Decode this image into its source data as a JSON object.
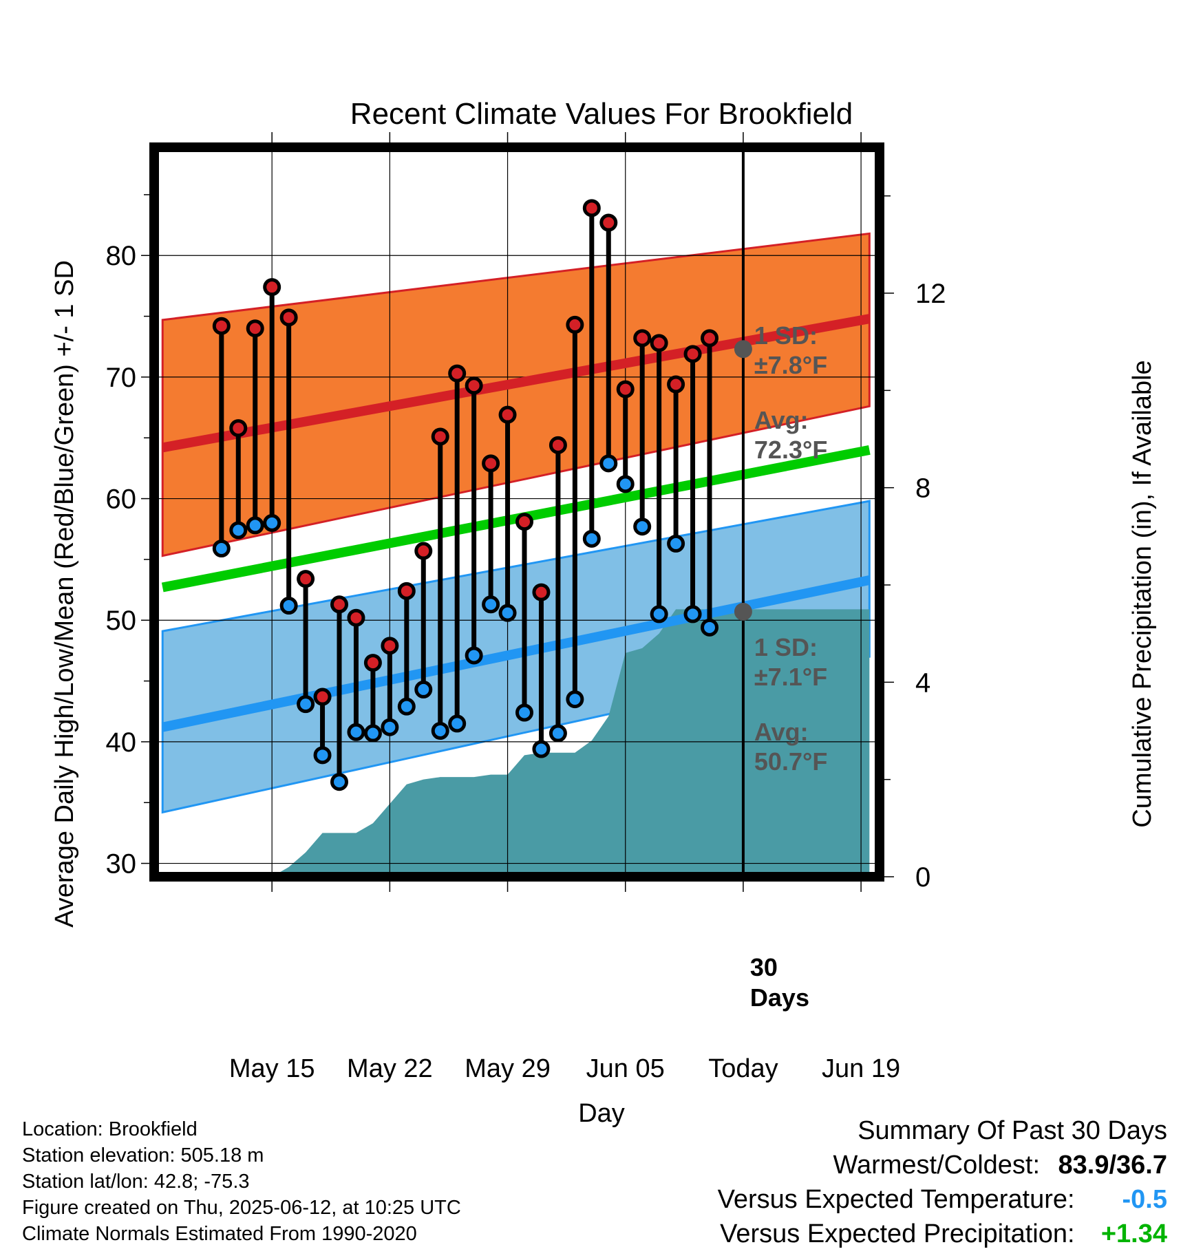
{
  "chart_data": {
    "type": "line",
    "title": "Recent Climate Values For Brookfield",
    "xlabel": "Day",
    "ylabel": "Average Daily High/Low/Mean (Red/Blue/Green) +/- 1 SD",
    "ylabel_right": "Cumulative Precipitation (in), If Available",
    "x_range": [
      -4.0,
      39.1
    ],
    "ylim": [
      28.9,
      88.9
    ],
    "y2lim": [
      0,
      15
    ],
    "x_ticks": [
      {
        "day": 3,
        "label": "May 15"
      },
      {
        "day": 10,
        "label": "May 22"
      },
      {
        "day": 17,
        "label": "May 29"
      },
      {
        "day": 24,
        "label": "Jun 05"
      },
      {
        "day": 31,
        "label": "Today"
      },
      {
        "day": 38,
        "label": "Jun 19"
      }
    ],
    "y_ticks": [
      "30",
      "40",
      "50",
      "60",
      "70",
      "80"
    ],
    "y2_ticks": [
      "0",
      "4",
      "8",
      "12"
    ],
    "grid": true,
    "normals": {
      "x_start": -3.5,
      "x_end": 38.5,
      "high_avg": [
        64.2,
        74.8
      ],
      "high_sd_upper": [
        74.7,
        81.8
      ],
      "high_sd_lower": [
        55.3,
        67.6
      ],
      "low_avg": [
        41.2,
        53.3
      ],
      "low_sd_upper": [
        49.1,
        59.8
      ],
      "low_sd_lower": [
        34.2,
        47.0
      ],
      "mean_avg": [
        52.7,
        64.0
      ]
    },
    "series": [
      {
        "name": "High",
        "values": [
          74.2,
          65.8,
          74.0,
          77.4,
          74.9,
          53.4,
          43.7,
          51.3,
          50.2,
          46.5,
          47.9,
          52.4,
          55.7,
          65.1,
          70.3,
          69.3,
          62.9,
          66.9,
          58.1,
          52.3,
          64.4,
          74.3,
          83.9,
          82.7,
          69.0,
          73.2,
          72.8,
          69.4,
          71.9,
          73.2
        ]
      },
      {
        "name": "Low",
        "values": [
          55.9,
          57.4,
          57.8,
          58.0,
          51.2,
          43.1,
          38.9,
          36.7,
          40.8,
          40.7,
          41.2,
          42.9,
          44.3,
          40.9,
          41.5,
          47.1,
          51.3,
          50.6,
          42.4,
          39.4,
          40.7,
          43.5,
          56.7,
          62.9,
          61.2,
          57.7,
          50.5,
          56.3,
          50.5,
          49.4
        ]
      },
      {
        "name": "Cumulative Precipitation",
        "x": [
          3,
          4,
          5,
          6,
          7,
          8,
          9,
          10,
          11,
          12,
          13,
          14,
          15,
          16,
          17,
          18,
          19,
          20,
          21,
          22,
          23,
          24,
          25,
          26,
          27,
          28,
          29,
          30,
          31,
          38.5
        ],
        "values": [
          0.0,
          0.2,
          0.5,
          0.9,
          0.9,
          0.9,
          1.1,
          1.5,
          1.9,
          2.0,
          2.05,
          2.05,
          2.05,
          2.1,
          2.1,
          2.5,
          2.55,
          2.55,
          2.55,
          2.8,
          3.3,
          4.6,
          4.7,
          5.0,
          5.5,
          5.5,
          5.5,
          5.5,
          5.5,
          5.5
        ]
      }
    ],
    "first_day": 0,
    "annotations": {
      "high_sd_label": "1 SD:",
      "high_sd_value": "±7.8°F",
      "high_avg_label": "Avg:",
      "high_avg_value": "72.3°F",
      "high_avg_point": 72.3,
      "low_sd_label": "1 SD:",
      "low_sd_value": "±7.1°F",
      "low_avg_label": "Avg:",
      "low_avg_value": "50.7°F",
      "low_avg_point": 50.7,
      "days_number": "30",
      "days_word": "Days"
    },
    "colors": {
      "high_band": "#f47b30",
      "high_line": "#d42026",
      "low_band": "#80bfe6",
      "low_line": "#2196f3",
      "mean_line": "#00cc00",
      "precip": "#4a9ba5",
      "high_dot": "#d42026",
      "low_dot": "#2196f3",
      "annotation": "#555555"
    }
  },
  "footer": {
    "location": "Location: Brookfield",
    "elevation": "Station elevation: 505.18 m",
    "latlon": "Station lat/lon: 42.8; -75.3",
    "created": "Figure created on Thu, 2025-06-12, at 10:25 UTC",
    "normals": "Climate Normals Estimated From 1990-2020"
  },
  "summary": {
    "title": "Summary Of Past 30 Days",
    "warm_cold_label": "Warmest/Coldest:",
    "warm_cold_value": "83.9/36.7",
    "temp_label": "Versus Expected Temperature:",
    "temp_value": "-0.5",
    "temp_color": "#2196f3",
    "precip_label": "Versus Expected Precipitation:",
    "precip_value": "+1.34",
    "precip_color": "#00b300"
  }
}
